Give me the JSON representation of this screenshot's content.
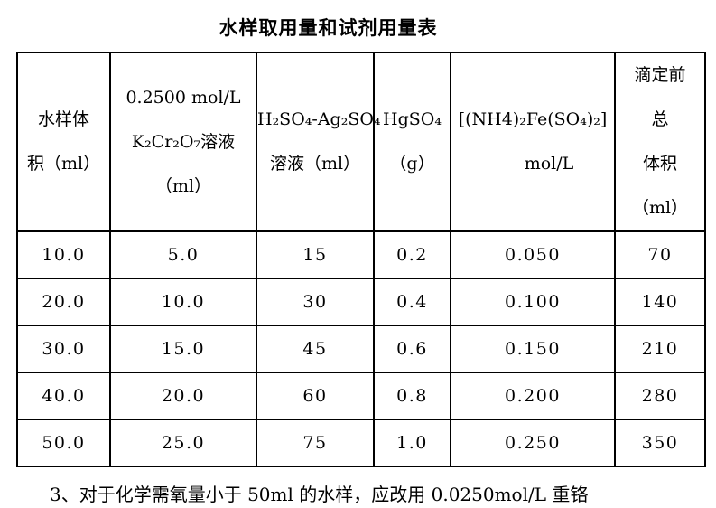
{
  "page": {
    "title": "水样取用量和试剂用量表",
    "footnote": "3、对于化学需氧量小于 50ml 的水样，应改用 0.0250mol/L 重铬"
  },
  "colors": {
    "text": "#000000",
    "border": "#000000",
    "background": "#ffffff"
  },
  "table": {
    "columns": [
      {
        "id": "water-sample-volume",
        "lines": [
          "水样体",
          "积（ml）"
        ]
      },
      {
        "id": "k2cr2o7-solution",
        "lines": [
          "0.2500 mol/L",
          "K₂Cr₂O₇溶液",
          "（ml）"
        ]
      },
      {
        "id": "h2so4-ag2so4-solution",
        "lines": [
          "H₂SO₄-Ag₂SO₄",
          "溶液（ml）"
        ]
      },
      {
        "id": "hgso4",
        "lines": [
          "HgSO₄",
          "（g）"
        ]
      },
      {
        "id": "ammonium-ferrous-sulfate",
        "lines": [
          "[(NH4)₂Fe(SO₄)₂]",
          "mol/L"
        ]
      },
      {
        "id": "total-volume-before-titration",
        "lines": [
          "滴定前",
          "总",
          "体积",
          "（ml）"
        ]
      }
    ],
    "rows": [
      [
        "10.0",
        "5.0",
        "15",
        "0.2",
        "0.050",
        "70"
      ],
      [
        "20.0",
        "10.0",
        "30",
        "0.4",
        "0.100",
        "140"
      ],
      [
        "30.0",
        "15.0",
        "45",
        "0.6",
        "0.150",
        "210"
      ],
      [
        "40.0",
        "20.0",
        "60",
        "0.8",
        "0.200",
        "280"
      ],
      [
        "50.0",
        "25.0",
        "75",
        "1.0",
        "0.250",
        "350"
      ]
    ]
  }
}
